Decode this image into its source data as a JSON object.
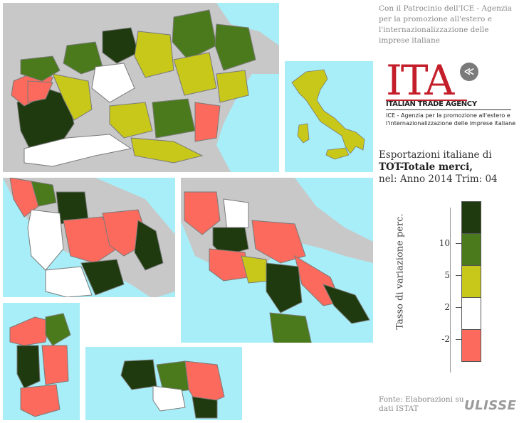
{
  "credit": "Con il Patrocinio dell'ICE - Agenzia per la promozione all'estero e l'internazionalizzazione delle imprese italiane",
  "logo": {
    "word": "ITA",
    "mark": "≪",
    "trade": "ITALIAN TRADE AGENCY",
    "sub1": "ICE - Agenzia per la promozione all'estero e",
    "sub2": "l'internazionalizzazione delle imprese italiane"
  },
  "title": {
    "line1": "Esportazioni italiane di",
    "line2": "TOT-Totale merci,",
    "line3": "nel: Anno 2014 Trim: 04"
  },
  "legend": {
    "axis_label": "Tasso di variazione perc.",
    "ticks": [
      "10",
      "5",
      "2",
      "-2"
    ],
    "classes": [
      {
        "range": "> 10",
        "color": "#1e3a0e"
      },
      {
        "range": "5 - 10",
        "color": "#4a7a1c"
      },
      {
        "range": "2 - 5",
        "color": "#c8c81a"
      },
      {
        "range": "-2 - 2",
        "color": "#ffffff"
      },
      {
        "range": "< -2",
        "color": "#fb6a5c"
      }
    ]
  },
  "colors": {
    "sea": "#a8eef8",
    "land_outside": "#c8c8c8",
    "border": "#7a7a7a"
  },
  "source": "Fonte: Elaborazioni su dati ISTAT",
  "brand": "ULISSE"
}
